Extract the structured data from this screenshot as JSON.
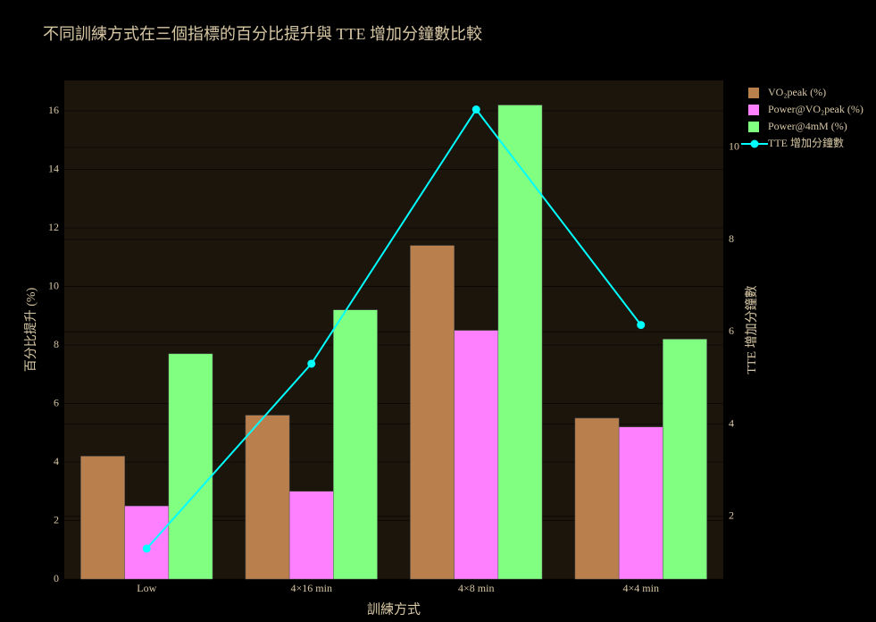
{
  "chart_data": {
    "type": "bar",
    "title": "不同訓練方式在三個指標的百分比提升與 TTE 增加分鐘數比較",
    "x_label": "訓練方式",
    "y_label": "百分比提升 (%)",
    "y2_label": "TTE 增加分鐘數",
    "categories": [
      "Low",
      "4×16 min",
      "4×8 min",
      "4×4 min"
    ],
    "series": [
      {
        "name": "VO₂peak (%)",
        "color": "#b97f4d",
        "type": "bar",
        "values": [
          4.2,
          5.6,
          11.4,
          5.5
        ]
      },
      {
        "name": "Power@VO₂peak (%)",
        "color": "#ff80ff",
        "type": "bar",
        "values": [
          2.5,
          3.0,
          8.5,
          5.2
        ]
      },
      {
        "name": "Power@4mM (%)",
        "color": "#80ff80",
        "type": "bar",
        "values": [
          7.7,
          9.2,
          16.2,
          8.2
        ]
      },
      {
        "name": "TTE 增加分鐘數",
        "color": "#00ffff",
        "type": "line",
        "axis": "y2",
        "values": [
          1.3,
          5.31,
          10.82,
          6.15
        ]
      }
    ],
    "ylim": [
      0,
      17.04
    ],
    "yticks": [
      0,
      2,
      4,
      6,
      8,
      10,
      12,
      14,
      16
    ],
    "y2lim": [
      0.64,
      11.45
    ],
    "y2ticks": [
      2,
      4,
      6,
      8,
      10
    ],
    "grid": true
  }
}
